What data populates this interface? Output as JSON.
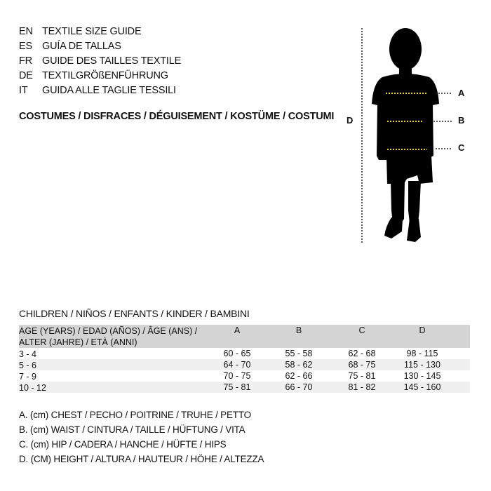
{
  "titles": [
    {
      "code": "EN",
      "text": "TEXTILE SIZE GUIDE"
    },
    {
      "code": "ES",
      "text": "GUÍA DE TALLAS"
    },
    {
      "code": "FR",
      "text": "GUIDE DES TAILLES TEXTILE"
    },
    {
      "code": "DE",
      "text": "TEXTILGRÖßENFÜHRUNG"
    },
    {
      "code": "IT",
      "text": "GUIDA ALLE TAGLIE TESSILI"
    }
  ],
  "category": "COSTUMES / DISFRACES / DÉGUISEMENT / KOSTÜME / COSTUMI",
  "diagram": {
    "labels": {
      "A": "A",
      "B": "B",
      "C": "C",
      "D": "D"
    },
    "guide_color": "#e8d21a"
  },
  "table": {
    "caption": "CHILDREN / NIÑOS / ENFANTS / KINDER / BAMBINI",
    "header": {
      "age_line1": "AGE (YEARS) / EDAD (AÑOS) / ÂGE (ANS) /",
      "age_line2": "ALTER (JAHRE) / ETÀ (ANNI)",
      "cols": [
        "A",
        "B",
        "C",
        "D"
      ]
    },
    "rows": [
      [
        "3 - 4",
        "60 - 65",
        "55 - 58",
        "62 - 68",
        "98 - 115"
      ],
      [
        "5 - 6",
        "64 - 70",
        "58 - 62",
        "68 - 75",
        "115 - 130"
      ],
      [
        "7 - 9",
        "70 - 75",
        "62 - 66",
        "75 - 81",
        "130 - 145"
      ],
      [
        "10 - 12",
        "75 - 81",
        "66 - 70",
        "81 - 82",
        "145 - 160"
      ]
    ]
  },
  "legend": [
    "A. (cm) CHEST / PECHO / POITRINE / TRUHE / PETTO",
    "B. (cm) WAIST / CINTURA / TAILLE / HÜFTUNG / VITA",
    "C. (cm) HIP / CADERA / HANCHE / HÜFTE / HIPS",
    "D. (CM) HEIGHT / ALTURA / HAUTEUR / HÖHE / ALTEZZA"
  ]
}
